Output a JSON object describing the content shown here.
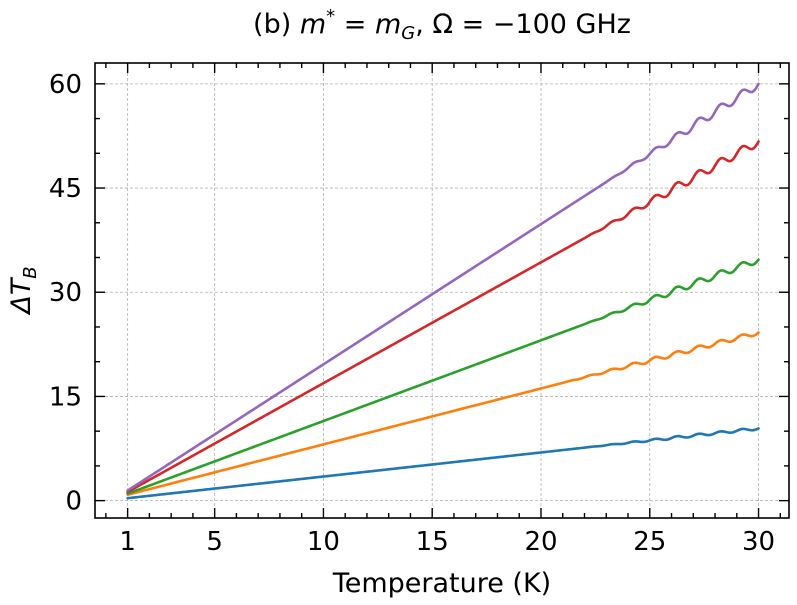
{
  "chart_data": {
    "type": "line",
    "title_prefix": "(b) ",
    "title_math": {
      "m_symbol": "m",
      "star": "*",
      "equals": " = ",
      "mG_base": "m",
      "mG_sub": "G",
      "comma": ", ",
      "omega": "Ω",
      "omega_value": " = −100 GHz"
    },
    "xlabel": "Temperature (K)",
    "ylabel": "ΔT",
    "ylabel_sub": "B",
    "xlim": [
      -0.5,
      31.4
    ],
    "ylim": [
      -2.5,
      63
    ],
    "xticks": [
      1,
      5,
      10,
      15,
      20,
      25,
      30
    ],
    "xtick_labels": [
      "1",
      "5",
      "10",
      "15",
      "20",
      "25",
      "30"
    ],
    "yticks": [
      0,
      15,
      30,
      45,
      60
    ],
    "ytick_labels": [
      "0",
      "15",
      "30",
      "45",
      "60"
    ],
    "grid": true,
    "x": [
      1,
      30
    ],
    "series": [
      {
        "name": "blue",
        "color": "#1f77b4",
        "values": [
          0.35,
          10.4
        ],
        "ripple_start": 22,
        "ripple_amp": 0.18
      },
      {
        "name": "orange",
        "color": "#ff7f0e",
        "values": [
          0.85,
          24.2
        ],
        "ripple_start": 21,
        "ripple_amp": 0.3
      },
      {
        "name": "green",
        "color": "#2ca02c",
        "values": [
          1.0,
          34.7
        ],
        "ripple_start": 22,
        "ripple_amp": 0.45
      },
      {
        "name": "red",
        "color": "#d62728",
        "values": [
          1.25,
          51.7
        ],
        "ripple_start": 22,
        "ripple_amp": 0.6
      },
      {
        "name": "purple",
        "color": "#9467bd",
        "values": [
          1.45,
          60.0
        ],
        "ripple_start": 23,
        "ripple_amp": 0.6
      }
    ]
  }
}
